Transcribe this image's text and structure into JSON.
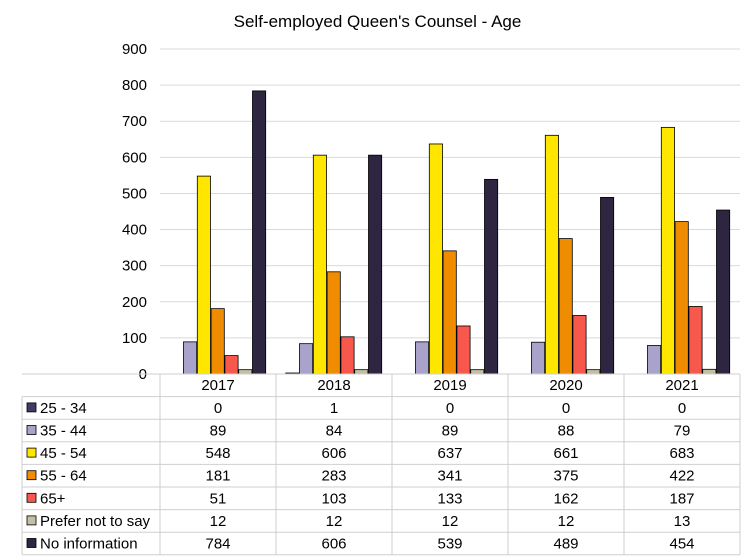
{
  "chart_data": {
    "type": "bar",
    "title": "Self-employed Queen's Counsel - Age",
    "xlabel": "",
    "ylabel": "",
    "ylim": [
      0,
      900
    ],
    "yticks": [
      0,
      100,
      200,
      300,
      400,
      500,
      600,
      700,
      800,
      900
    ],
    "grid": true,
    "legend": "data-table",
    "categories": [
      "2017",
      "2018",
      "2019",
      "2020",
      "2021"
    ],
    "series": [
      {
        "name": "25 - 34",
        "color": "#3f3b66",
        "values": [
          0,
          1,
          0,
          0,
          0
        ]
      },
      {
        "name": "35 - 44",
        "color": "#a9a3cc",
        "values": [
          89,
          84,
          89,
          88,
          79
        ]
      },
      {
        "name": "45 - 54",
        "color": "#ffe600",
        "values": [
          548,
          606,
          637,
          661,
          683
        ]
      },
      {
        "name": "55 - 64",
        "color": "#ef8c00",
        "values": [
          181,
          283,
          341,
          375,
          422
        ]
      },
      {
        "name": "65+",
        "color": "#f8584b",
        "values": [
          51,
          103,
          133,
          162,
          187
        ]
      },
      {
        "name": "Prefer not to say",
        "color": "#c2bfa2",
        "values": [
          12,
          12,
          12,
          12,
          13
        ]
      },
      {
        "name": "No information",
        "color": "#2e2540",
        "values": [
          784,
          606,
          539,
          489,
          454
        ]
      }
    ]
  }
}
